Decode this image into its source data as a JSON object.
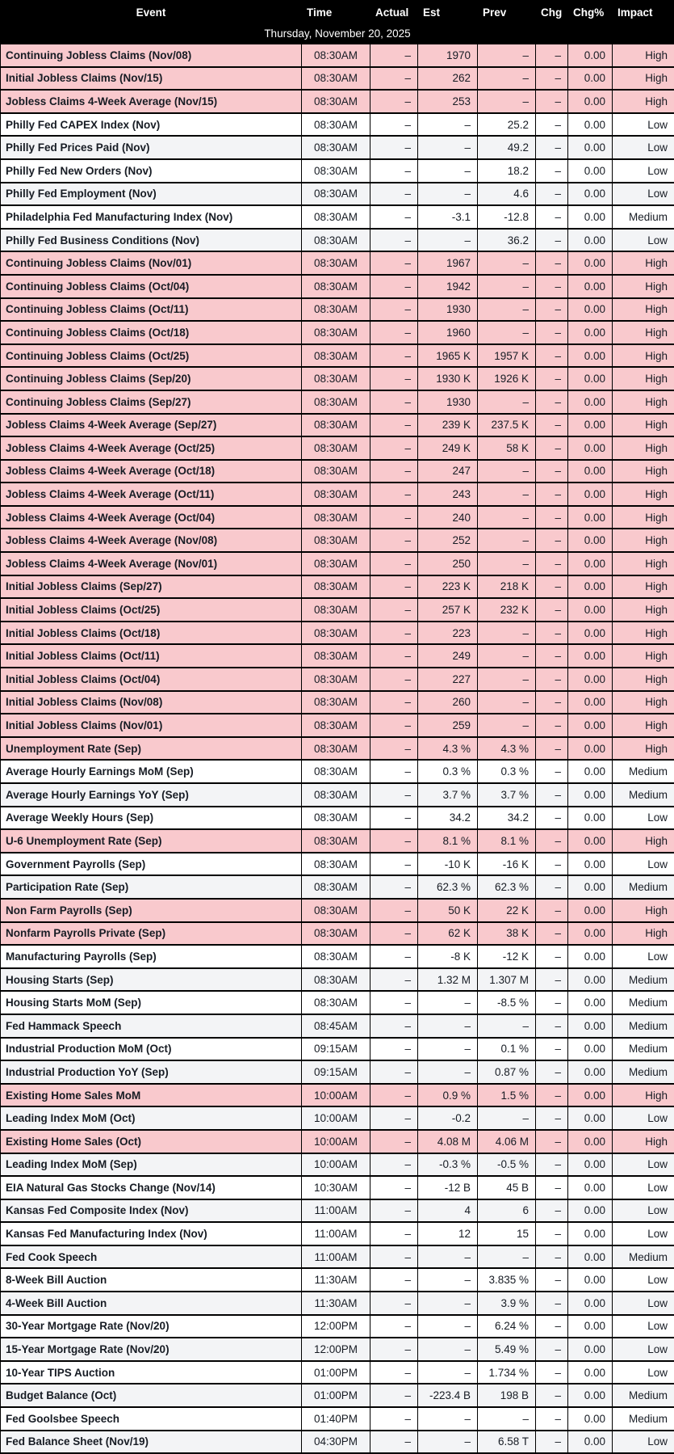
{
  "table": {
    "columns": [
      {
        "key": "event",
        "label": "Event"
      },
      {
        "key": "time",
        "label": "Time"
      },
      {
        "key": "actual",
        "label": "Actual"
      },
      {
        "key": "est",
        "label": "Est"
      },
      {
        "key": "prev",
        "label": "Prev"
      },
      {
        "key": "chg",
        "label": "Chg"
      },
      {
        "key": "chgpct",
        "label": "Chg%"
      },
      {
        "key": "impact",
        "label": "Impact"
      }
    ],
    "date_header": "Thursday, November 20, 2025",
    "rows": [
      {
        "event": "Continuing Jobless Claims (Nov/08)",
        "time": "08:30AM",
        "actual": "–",
        "est": "1970",
        "prev": "–",
        "chg": "–",
        "chgpct": "0.00",
        "impact": "High"
      },
      {
        "event": "Initial Jobless Claims (Nov/15)",
        "time": "08:30AM",
        "actual": "–",
        "est": "262",
        "prev": "–",
        "chg": "–",
        "chgpct": "0.00",
        "impact": "High"
      },
      {
        "event": "Jobless Claims 4-Week Average (Nov/15)",
        "time": "08:30AM",
        "actual": "–",
        "est": "253",
        "prev": "–",
        "chg": "–",
        "chgpct": "0.00",
        "impact": "High"
      },
      {
        "event": "Philly Fed CAPEX Index (Nov)",
        "time": "08:30AM",
        "actual": "–",
        "est": "–",
        "prev": "25.2",
        "chg": "–",
        "chgpct": "0.00",
        "impact": "Low"
      },
      {
        "event": "Philly Fed Prices Paid (Nov)",
        "time": "08:30AM",
        "actual": "–",
        "est": "–",
        "prev": "49.2",
        "chg": "–",
        "chgpct": "0.00",
        "impact": "Low"
      },
      {
        "event": "Philly Fed New Orders (Nov)",
        "time": "08:30AM",
        "actual": "–",
        "est": "–",
        "prev": "18.2",
        "chg": "–",
        "chgpct": "0.00",
        "impact": "Low"
      },
      {
        "event": "Philly Fed Employment (Nov)",
        "time": "08:30AM",
        "actual": "–",
        "est": "–",
        "prev": "4.6",
        "chg": "–",
        "chgpct": "0.00",
        "impact": "Low"
      },
      {
        "event": "Philadelphia Fed Manufacturing Index (Nov)",
        "time": "08:30AM",
        "actual": "–",
        "est": "-3.1",
        "prev": "-12.8",
        "chg": "–",
        "chgpct": "0.00",
        "impact": "Medium"
      },
      {
        "event": "Philly Fed Business Conditions (Nov)",
        "time": "08:30AM",
        "actual": "–",
        "est": "–",
        "prev": "36.2",
        "chg": "–",
        "chgpct": "0.00",
        "impact": "Low"
      },
      {
        "event": "Continuing Jobless Claims (Nov/01)",
        "time": "08:30AM",
        "actual": "–",
        "est": "1967",
        "prev": "–",
        "chg": "–",
        "chgpct": "0.00",
        "impact": "High"
      },
      {
        "event": "Continuing Jobless Claims (Oct/04)",
        "time": "08:30AM",
        "actual": "–",
        "est": "1942",
        "prev": "–",
        "chg": "–",
        "chgpct": "0.00",
        "impact": "High"
      },
      {
        "event": "Continuing Jobless Claims (Oct/11)",
        "time": "08:30AM",
        "actual": "–",
        "est": "1930",
        "prev": "–",
        "chg": "–",
        "chgpct": "0.00",
        "impact": "High"
      },
      {
        "event": "Continuing Jobless Claims (Oct/18)",
        "time": "08:30AM",
        "actual": "–",
        "est": "1960",
        "prev": "–",
        "chg": "–",
        "chgpct": "0.00",
        "impact": "High"
      },
      {
        "event": "Continuing Jobless Claims (Oct/25)",
        "time": "08:30AM",
        "actual": "–",
        "est": "1965 K",
        "prev": "1957 K",
        "chg": "–",
        "chgpct": "0.00",
        "impact": "High"
      },
      {
        "event": "Continuing Jobless Claims (Sep/20)",
        "time": "08:30AM",
        "actual": "–",
        "est": "1930 K",
        "prev": "1926 K",
        "chg": "–",
        "chgpct": "0.00",
        "impact": "High"
      },
      {
        "event": "Continuing Jobless Claims (Sep/27)",
        "time": "08:30AM",
        "actual": "–",
        "est": "1930",
        "prev": "–",
        "chg": "–",
        "chgpct": "0.00",
        "impact": "High"
      },
      {
        "event": "Jobless Claims 4-Week Average (Sep/27)",
        "time": "08:30AM",
        "actual": "–",
        "est": "239 K",
        "prev": "237.5 K",
        "chg": "–",
        "chgpct": "0.00",
        "impact": "High"
      },
      {
        "event": "Jobless Claims 4-Week Average (Oct/25)",
        "time": "08:30AM",
        "actual": "–",
        "est": "249 K",
        "prev": "58 K",
        "chg": "–",
        "chgpct": "0.00",
        "impact": "High"
      },
      {
        "event": "Jobless Claims 4-Week Average (Oct/18)",
        "time": "08:30AM",
        "actual": "–",
        "est": "247",
        "prev": "–",
        "chg": "–",
        "chgpct": "0.00",
        "impact": "High"
      },
      {
        "event": "Jobless Claims 4-Week Average (Oct/11)",
        "time": "08:30AM",
        "actual": "–",
        "est": "243",
        "prev": "–",
        "chg": "–",
        "chgpct": "0.00",
        "impact": "High"
      },
      {
        "event": "Jobless Claims 4-Week Average (Oct/04)",
        "time": "08:30AM",
        "actual": "–",
        "est": "240",
        "prev": "–",
        "chg": "–",
        "chgpct": "0.00",
        "impact": "High"
      },
      {
        "event": "Jobless Claims 4-Week Average (Nov/08)",
        "time": "08:30AM",
        "actual": "–",
        "est": "252",
        "prev": "–",
        "chg": "–",
        "chgpct": "0.00",
        "impact": "High"
      },
      {
        "event": "Jobless Claims 4-Week Average (Nov/01)",
        "time": "08:30AM",
        "actual": "–",
        "est": "250",
        "prev": "–",
        "chg": "–",
        "chgpct": "0.00",
        "impact": "High"
      },
      {
        "event": "Initial Jobless Claims (Sep/27)",
        "time": "08:30AM",
        "actual": "–",
        "est": "223 K",
        "prev": "218 K",
        "chg": "–",
        "chgpct": "0.00",
        "impact": "High"
      },
      {
        "event": "Initial Jobless Claims (Oct/25)",
        "time": "08:30AM",
        "actual": "–",
        "est": "257 K",
        "prev": "232 K",
        "chg": "–",
        "chgpct": "0.00",
        "impact": "High"
      },
      {
        "event": "Initial Jobless Claims (Oct/18)",
        "time": "08:30AM",
        "actual": "–",
        "est": "223",
        "prev": "–",
        "chg": "–",
        "chgpct": "0.00",
        "impact": "High"
      },
      {
        "event": "Initial Jobless Claims (Oct/11)",
        "time": "08:30AM",
        "actual": "–",
        "est": "249",
        "prev": "–",
        "chg": "–",
        "chgpct": "0.00",
        "impact": "High"
      },
      {
        "event": "Initial Jobless Claims (Oct/04)",
        "time": "08:30AM",
        "actual": "–",
        "est": "227",
        "prev": "–",
        "chg": "–",
        "chgpct": "0.00",
        "impact": "High"
      },
      {
        "event": "Initial Jobless Claims (Nov/08)",
        "time": "08:30AM",
        "actual": "–",
        "est": "260",
        "prev": "–",
        "chg": "–",
        "chgpct": "0.00",
        "impact": "High"
      },
      {
        "event": "Initial Jobless Claims (Nov/01)",
        "time": "08:30AM",
        "actual": "–",
        "est": "259",
        "prev": "–",
        "chg": "–",
        "chgpct": "0.00",
        "impact": "High"
      },
      {
        "event": "Unemployment Rate (Sep)",
        "time": "08:30AM",
        "actual": "–",
        "est": "4.3 %",
        "prev": "4.3 %",
        "chg": "–",
        "chgpct": "0.00",
        "impact": "High"
      },
      {
        "event": "Average Hourly Earnings MoM (Sep)",
        "time": "08:30AM",
        "actual": "–",
        "est": "0.3 %",
        "prev": "0.3 %",
        "chg": "–",
        "chgpct": "0.00",
        "impact": "Medium"
      },
      {
        "event": "Average Hourly Earnings YoY (Sep)",
        "time": "08:30AM",
        "actual": "–",
        "est": "3.7 %",
        "prev": "3.7 %",
        "chg": "–",
        "chgpct": "0.00",
        "impact": "Medium"
      },
      {
        "event": "Average Weekly Hours (Sep)",
        "time": "08:30AM",
        "actual": "–",
        "est": "34.2",
        "prev": "34.2",
        "chg": "–",
        "chgpct": "0.00",
        "impact": "Low"
      },
      {
        "event": "U-6 Unemployment Rate (Sep)",
        "time": "08:30AM",
        "actual": "–",
        "est": "8.1 %",
        "prev": "8.1 %",
        "chg": "–",
        "chgpct": "0.00",
        "impact": "High"
      },
      {
        "event": "Government Payrolls (Sep)",
        "time": "08:30AM",
        "actual": "–",
        "est": "-10 K",
        "prev": "-16 K",
        "chg": "–",
        "chgpct": "0.00",
        "impact": "Low"
      },
      {
        "event": "Participation Rate (Sep)",
        "time": "08:30AM",
        "actual": "–",
        "est": "62.3 %",
        "prev": "62.3 %",
        "chg": "–",
        "chgpct": "0.00",
        "impact": "Medium"
      },
      {
        "event": "Non Farm Payrolls (Sep)",
        "time": "08:30AM",
        "actual": "–",
        "est": "50 K",
        "prev": "22 K",
        "chg": "–",
        "chgpct": "0.00",
        "impact": "High"
      },
      {
        "event": "Nonfarm Payrolls Private (Sep)",
        "time": "08:30AM",
        "actual": "–",
        "est": "62 K",
        "prev": "38 K",
        "chg": "–",
        "chgpct": "0.00",
        "impact": "High"
      },
      {
        "event": "Manufacturing Payrolls (Sep)",
        "time": "08:30AM",
        "actual": "–",
        "est": "-8 K",
        "prev": "-12 K",
        "chg": "–",
        "chgpct": "0.00",
        "impact": "Low"
      },
      {
        "event": "Housing Starts (Sep)",
        "time": "08:30AM",
        "actual": "–",
        "est": "1.32 M",
        "prev": "1.307 M",
        "chg": "–",
        "chgpct": "0.00",
        "impact": "Medium"
      },
      {
        "event": "Housing Starts MoM (Sep)",
        "time": "08:30AM",
        "actual": "–",
        "est": "–",
        "prev": "-8.5 %",
        "chg": "–",
        "chgpct": "0.00",
        "impact": "Medium"
      },
      {
        "event": "Fed Hammack Speech",
        "time": "08:45AM",
        "actual": "–",
        "est": "–",
        "prev": "–",
        "chg": "–",
        "chgpct": "0.00",
        "impact": "Medium"
      },
      {
        "event": "Industrial Production MoM (Oct)",
        "time": "09:15AM",
        "actual": "–",
        "est": "–",
        "prev": "0.1 %",
        "chg": "–",
        "chgpct": "0.00",
        "impact": "Medium"
      },
      {
        "event": "Industrial Production YoY (Sep)",
        "time": "09:15AM",
        "actual": "–",
        "est": "–",
        "prev": "0.87 %",
        "chg": "–",
        "chgpct": "0.00",
        "impact": "Medium"
      },
      {
        "event": "Existing Home Sales MoM",
        "time": "10:00AM",
        "actual": "–",
        "est": "0.9 %",
        "prev": "1.5 %",
        "chg": "–",
        "chgpct": "0.00",
        "impact": "High"
      },
      {
        "event": "Leading Index MoM (Oct)",
        "time": "10:00AM",
        "actual": "–",
        "est": "-0.2",
        "prev": "–",
        "chg": "–",
        "chgpct": "0.00",
        "impact": "Low"
      },
      {
        "event": "Existing Home Sales (Oct)",
        "time": "10:00AM",
        "actual": "–",
        "est": "4.08 M",
        "prev": "4.06 M",
        "chg": "–",
        "chgpct": "0.00",
        "impact": "High"
      },
      {
        "event": "Leading Index MoM (Sep)",
        "time": "10:00AM",
        "actual": "–",
        "est": "-0.3 %",
        "prev": "-0.5 %",
        "chg": "–",
        "chgpct": "0.00",
        "impact": "Low"
      },
      {
        "event": "EIA Natural Gas Stocks Change (Nov/14)",
        "time": "10:30AM",
        "actual": "–",
        "est": "-12 B",
        "prev": "45 B",
        "chg": "–",
        "chgpct": "0.00",
        "impact": "Low"
      },
      {
        "event": "Kansas Fed Composite Index (Nov)",
        "time": "11:00AM",
        "actual": "–",
        "est": "4",
        "prev": "6",
        "chg": "–",
        "chgpct": "0.00",
        "impact": "Low"
      },
      {
        "event": "Kansas Fed Manufacturing Index (Nov)",
        "time": "11:00AM",
        "actual": "–",
        "est": "12",
        "prev": "15",
        "chg": "–",
        "chgpct": "0.00",
        "impact": "Low"
      },
      {
        "event": "Fed Cook Speech",
        "time": "11:00AM",
        "actual": "–",
        "est": "–",
        "prev": "–",
        "chg": "–",
        "chgpct": "0.00",
        "impact": "Medium"
      },
      {
        "event": "8-Week Bill Auction",
        "time": "11:30AM",
        "actual": "–",
        "est": "–",
        "prev": "3.835 %",
        "chg": "–",
        "chgpct": "0.00",
        "impact": "Low"
      },
      {
        "event": "4-Week Bill Auction",
        "time": "11:30AM",
        "actual": "–",
        "est": "–",
        "prev": "3.9 %",
        "chg": "–",
        "chgpct": "0.00",
        "impact": "Low"
      },
      {
        "event": "30-Year Mortgage Rate (Nov/20)",
        "time": "12:00PM",
        "actual": "–",
        "est": "–",
        "prev": "6.24 %",
        "chg": "–",
        "chgpct": "0.00",
        "impact": "Low"
      },
      {
        "event": "15-Year Mortgage Rate (Nov/20)",
        "time": "12:00PM",
        "actual": "–",
        "est": "–",
        "prev": "5.49 %",
        "chg": "–",
        "chgpct": "0.00",
        "impact": "Low"
      },
      {
        "event": "10-Year TIPS Auction",
        "time": "01:00PM",
        "actual": "–",
        "est": "–",
        "prev": "1.734 %",
        "chg": "–",
        "chgpct": "0.00",
        "impact": "Low"
      },
      {
        "event": "Budget Balance (Oct)",
        "time": "01:00PM",
        "actual": "–",
        "est": "-223.4 B",
        "prev": "198 B",
        "chg": "–",
        "chgpct": "0.00",
        "impact": "Medium"
      },
      {
        "event": "Fed Goolsbee Speech",
        "time": "01:40PM",
        "actual": "–",
        "est": "–",
        "prev": "–",
        "chg": "–",
        "chgpct": "0.00",
        "impact": "Medium"
      },
      {
        "event": "Fed Balance Sheet (Nov/19)",
        "time": "04:30PM",
        "actual": "–",
        "est": "–",
        "prev": "6.58 T",
        "chg": "–",
        "chgpct": "0.00",
        "impact": "Low"
      }
    ]
  },
  "colors": {
    "header_bg": "#000000",
    "header_text": "#ffffff",
    "high_row_bg": "#f9c9cd",
    "stripe_row_bg": "#f3f4f6",
    "row_bg": "#ffffff",
    "row_text": "#171c24",
    "border": "#000000"
  }
}
